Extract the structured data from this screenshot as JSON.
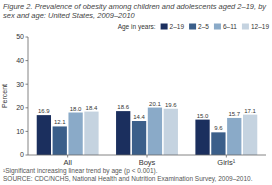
{
  "chart_data": {
    "type": "bar",
    "title": "Figure 2. Prevalence of obesity among children and adolescents aged 2–19, by sex and age: United States, 2009–2010",
    "categories": [
      "All",
      "Boys",
      "Girls¹"
    ],
    "series": [
      {
        "name": "2–19",
        "color": "#1b2f5e",
        "values": [
          16.9,
          18.6,
          15.0
        ],
        "value_labels": [
          "16.9",
          "18.6",
          "15.0"
        ]
      },
      {
        "name": "2–5",
        "color": "#3b5f8a",
        "values": [
          12.1,
          14.4,
          9.6
        ]
      },
      {
        "name": "6–11",
        "color": "#8aaac8",
        "values": [
          18.0,
          20.1,
          15.7
        ],
        "value_labels": [
          "18.0",
          "20.1",
          "15.7"
        ]
      },
      {
        "name": "12–19",
        "color": "#c5d3e0",
        "values": [
          18.4,
          19.6,
          17.1
        ]
      }
    ],
    "legend_title": "Age in years:",
    "legend": "upper right",
    "ylabel": "Percent",
    "ylim": [
      0,
      50
    ],
    "yticks": [
      0,
      10,
      20,
      30,
      40,
      50
    ],
    "grid": false,
    "data_labels": true,
    "annotations": [
      "¹Significant increasing linear trend by age (p < 0.001).",
      "SOURCE: CDC/NCHS, National Health and Nutrition Examination Survey, 2009–2010."
    ]
  }
}
